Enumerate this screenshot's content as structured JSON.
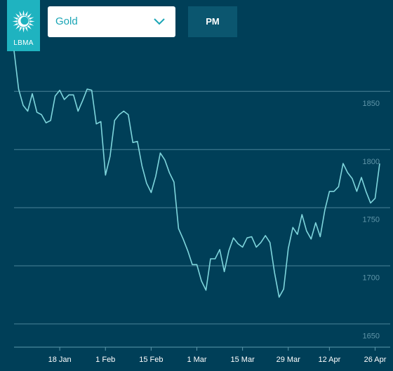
{
  "logo": {
    "text": "LBMA",
    "icon": "sun-icon"
  },
  "metal_select": {
    "value": "Gold",
    "icon": "chevron-down-icon"
  },
  "pm_button": {
    "label": "PM"
  },
  "colors": {
    "background": "#003f58",
    "accent": "#1fb3c0",
    "line": "#7ed5dc",
    "pm_button": "#0b566f"
  },
  "chart_data": {
    "type": "line",
    "title": "",
    "xlabel": "",
    "ylabel": "",
    "ylim": [
      1640,
      1900
    ],
    "y_ticks": [
      1650,
      1700,
      1750,
      1800,
      1850
    ],
    "x_ticks": [
      {
        "label": "18 Jan",
        "index": 10
      },
      {
        "label": "1 Feb",
        "index": 20
      },
      {
        "label": "15 Feb",
        "index": 30
      },
      {
        "label": "1 Mar",
        "index": 40
      },
      {
        "label": "15 Mar",
        "index": 50
      },
      {
        "label": "29 Mar",
        "index": 60
      },
      {
        "label": "12 Apr",
        "index": 69
      },
      {
        "label": "26 Apr",
        "index": 79
      }
    ],
    "grid": true,
    "series": [
      {
        "values": [
          1895,
          1862,
          1848,
          1843,
          1858,
          1842,
          1840,
          1833,
          1835,
          1856,
          1861,
          1853,
          1857,
          1857,
          1843,
          1852,
          1862,
          1861,
          1832,
          1834,
          1788,
          1804,
          1835,
          1840,
          1843,
          1840,
          1816,
          1817,
          1796,
          1781,
          1773,
          1787,
          1807,
          1801,
          1790,
          1782,
          1742,
          1733,
          1723,
          1711,
          1711,
          1697,
          1689,
          1716,
          1716,
          1724,
          1705,
          1723,
          1734,
          1729,
          1726,
          1734,
          1735,
          1726,
          1730,
          1736,
          1730,
          1704,
          1683,
          1690,
          1725,
          1743,
          1737,
          1754,
          1740,
          1733,
          1747,
          1735,
          1758,
          1774,
          1774,
          1778,
          1798,
          1790,
          1785,
          1774,
          1786,
          1774,
          1764,
          1768,
          1798
        ]
      }
    ]
  }
}
